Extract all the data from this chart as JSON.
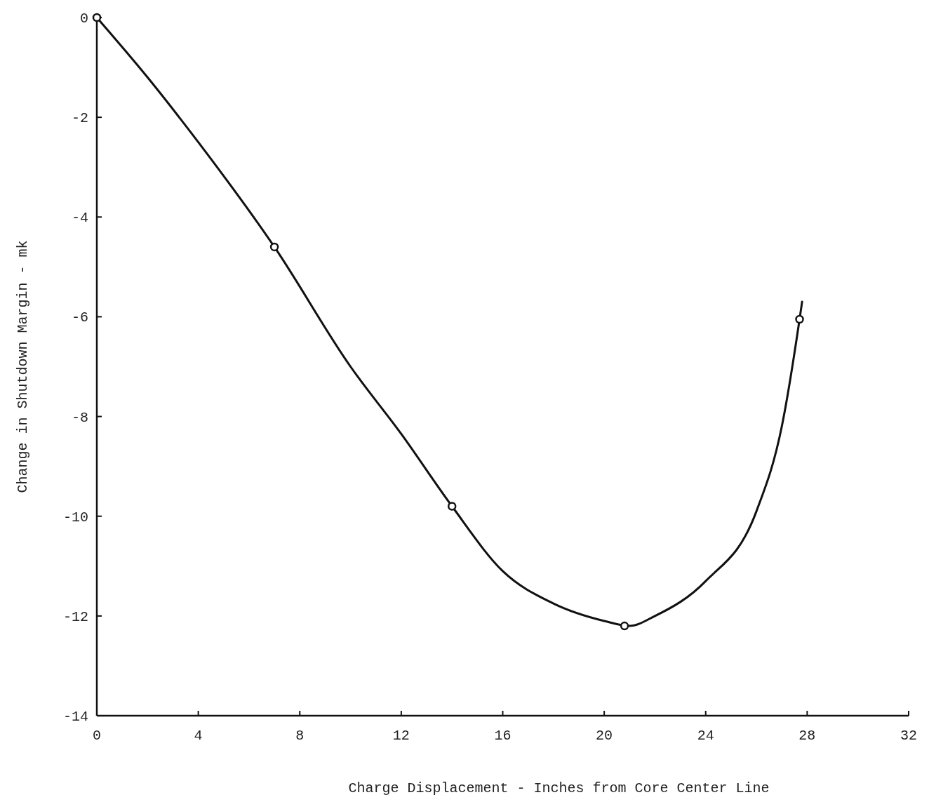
{
  "chart_data": {
    "type": "line",
    "xlabel": "Charge Displacement - Inches from Core Center Line",
    "ylabel": "Change in Shutdown Margin - mk",
    "xlim": [
      0,
      32
    ],
    "ylim": [
      -14,
      0
    ],
    "xticks": [
      0,
      4,
      8,
      12,
      16,
      20,
      24,
      28,
      32
    ],
    "yticks": [
      0,
      -2,
      -4,
      -6,
      -8,
      -10,
      -12,
      -14
    ],
    "grid": false,
    "series": [
      {
        "color": "#111111",
        "marker": "none",
        "line_style": "solid",
        "x": [
          0,
          2,
          4,
          7,
          10,
          12,
          14,
          16,
          18,
          20,
          21,
          22,
          24,
          26,
          27,
          27.7,
          27.8
        ],
        "values": [
          0,
          -1.2,
          -2.5,
          -4.6,
          -7.0,
          -8.35,
          -9.8,
          -11.1,
          -11.75,
          -12.1,
          -12.2,
          -12.0,
          -11.3,
          -9.9,
          -8.2,
          -6.05,
          -5.7
        ]
      },
      {
        "type": "scatter",
        "color": "#111111",
        "marker": "circle",
        "x": [
          0,
          7,
          14,
          20.8,
          27.7
        ],
        "values": [
          0,
          -4.6,
          -9.8,
          -12.2,
          -6.05
        ]
      }
    ]
  }
}
